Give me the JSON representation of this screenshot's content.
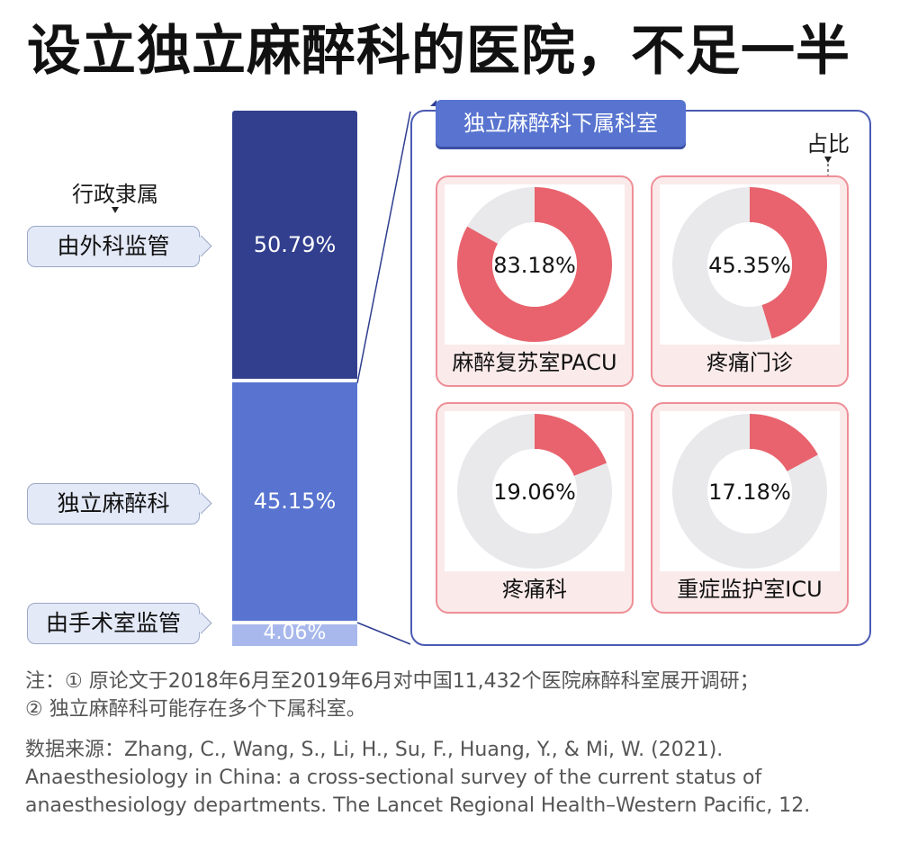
{
  "title": "设立独立麻醉科的医院，不足一半",
  "admin_header": "行政隶属",
  "ratio_header": "占比",
  "panel_tab": "独立麻醉科下属科室",
  "panel_ratio_header": "占比",
  "colors": {
    "bar_dark": "#323f8e",
    "bar_mid": "#5874d0",
    "bar_light": "#a8b8ec",
    "donut_fill": "#e8636d",
    "donut_rest": "#e9e9ec",
    "card_border": "#ee8f97",
    "card_bg": "#fbeaea",
    "panel_border": "#4a5bb3"
  },
  "chart_data": [
    {
      "type": "bar",
      "stacked": true,
      "categories": [
        "由外科监管",
        "独立麻醉科",
        "由手术室监管"
      ],
      "values": [
        50.79,
        45.15,
        4.06
      ],
      "labels": [
        "50.79%",
        "45.15%",
        "4.06%"
      ],
      "unit": "%"
    },
    {
      "type": "pie",
      "style": "donut",
      "items": [
        {
          "name": "麻醉复苏室PACU",
          "value": 83.18,
          "label": "83.18%"
        },
        {
          "name": "疼痛门诊",
          "value": 45.35,
          "label": "45.35%"
        },
        {
          "name": "疼痛科",
          "value": 19.06,
          "label": "19.06%"
        },
        {
          "name": "重症监护室ICU",
          "value": 17.18,
          "label": "17.18%"
        }
      ]
    }
  ],
  "notes": {
    "line1": "注：① 原论文于2018年6月至2019年6月对中国11,432个医院麻醉科室展开调研；",
    "line2": "② 独立麻醉科可能存在多个下属科室。"
  },
  "source": "数据来源：Zhang, C., Wang, S., Li, H., Su, F., Huang, Y., & Mi, W. (2021). Anaesthesiology in China: a cross-sectional survey of the current status of anaesthesiology departments. The Lancet Regional Health–Western Pacific, 12."
}
